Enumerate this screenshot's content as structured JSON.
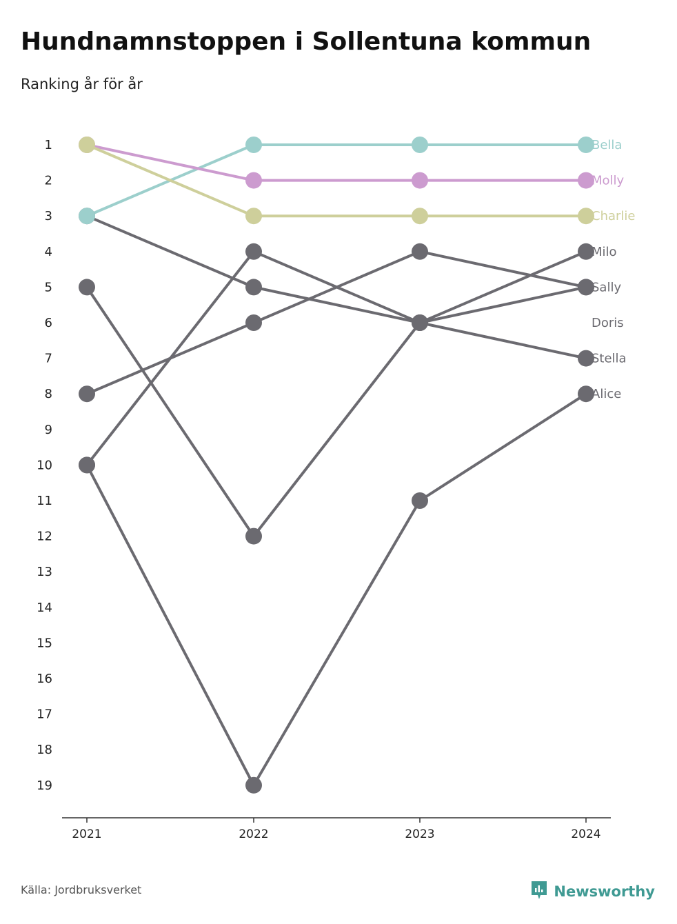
{
  "header": {
    "title": "Hundnamnstoppen i Sollentuna kommun",
    "subtitle": "Ranking år för år"
  },
  "footer": {
    "source": "Källa: Jordbruksverket",
    "brand": "Newsworthy",
    "brand_icon": "newsworthy-logo-icon",
    "brand_color": "#3f9a93"
  },
  "chart_data": {
    "type": "line",
    "title": "Hundnamnstoppen i Sollentuna kommun",
    "subtitle": "Ranking år för år",
    "x": [
      "2021",
      "2022",
      "2023",
      "2024"
    ],
    "y_ticks": [
      1,
      2,
      3,
      4,
      5,
      6,
      7,
      8,
      9,
      10,
      11,
      12,
      13,
      14,
      15,
      16,
      17,
      18,
      19
    ],
    "ylim": [
      1,
      19
    ],
    "y_inverted": true,
    "grid": false,
    "legend": "direct labels at right end of lines",
    "series": [
      {
        "name": "Bella",
        "values": [
          3,
          1,
          1,
          1
        ],
        "color": "#9ccfcc"
      },
      {
        "name": "Molly",
        "values": [
          1,
          2,
          2,
          2
        ],
        "color": "#cc9bcf"
      },
      {
        "name": "Charlie",
        "values": [
          1,
          3,
          3,
          3
        ],
        "color": "#cecf9b"
      },
      {
        "name": "Milo",
        "values": [
          10,
          4,
          6,
          4
        ],
        "color": "#6b6a70"
      },
      {
        "name": "Sally",
        "values": [
          5,
          12,
          6,
          5
        ],
        "color": "#6b6a70"
      },
      {
        "name": "Doris",
        "values": [
          null,
          null,
          null,
          null
        ],
        "color": "#6b6a70"
      },
      {
        "name": "Stella",
        "values": [
          3,
          5,
          6,
          7
        ],
        "color": "#6b6a70"
      },
      {
        "name": "Alice",
        "values": [
          10,
          19,
          11,
          8
        ],
        "color": "#6b6a70"
      },
      {
        "name": "",
        "values": [
          8,
          6,
          4,
          5
        ],
        "color": "#6b6a70"
      }
    ]
  }
}
